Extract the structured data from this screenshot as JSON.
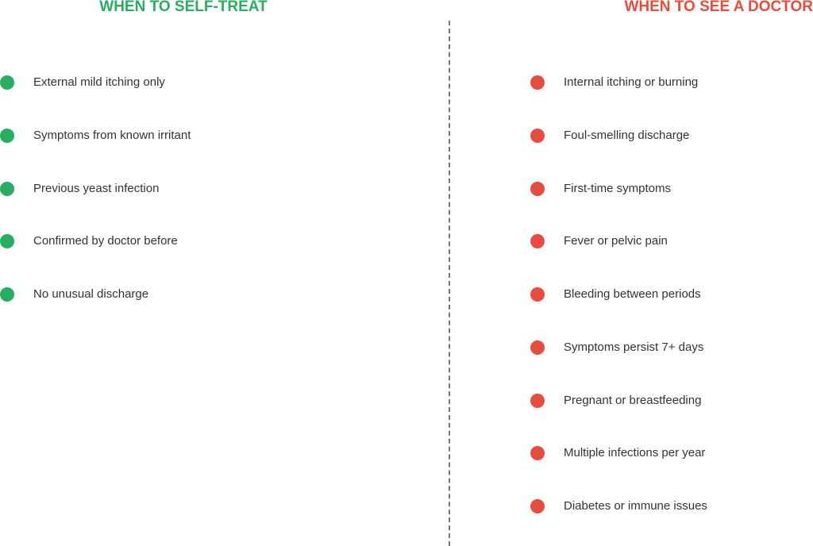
{
  "colors": {
    "self_treat": "#27ae60",
    "see_doctor": "#e74c3c",
    "divider": "#777777",
    "text": "#333333"
  },
  "left": {
    "title": "WHEN TO SELF-TREAT",
    "icon": "green-circle-bullet",
    "items": [
      "External mild itching only",
      "Symptoms from known irritant",
      "Previous yeast infection",
      "Confirmed by doctor before",
      "No unusual discharge"
    ]
  },
  "right": {
    "title": "WHEN TO SEE A DOCTOR",
    "icon": "red-circle-bullet",
    "items": [
      "Internal itching or burning",
      "Foul-smelling discharge",
      "First-time symptoms",
      "Fever or pelvic pain",
      "Bleeding between periods",
      "Symptoms persist 7+ days",
      "Pregnant or breastfeeding",
      "Multiple infections per year",
      "Diabetes or immune issues"
    ]
  }
}
